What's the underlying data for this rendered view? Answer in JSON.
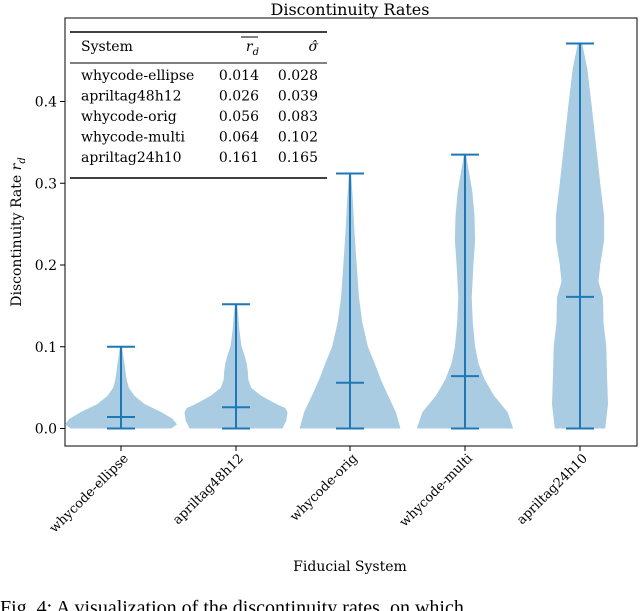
{
  "chart_data": {
    "type": "violin",
    "title": "Discontinuity Rates",
    "xlabel": "Fiducial System",
    "ylabel": "Discontinuity Rate r_d",
    "ylabel_main": "Discontinuity Rate",
    "ylabel_symbol": "r",
    "ylabel_subscript": "d",
    "ylim": [
      -0.02,
      0.49
    ],
    "yticks": [
      "0.0",
      "0.1",
      "0.2",
      "0.3",
      "0.4"
    ],
    "yticks_values": [
      0.0,
      0.1,
      0.2,
      0.3,
      0.4
    ],
    "categories": [
      "whycode-ellipse",
      "apriltag48h12",
      "whycode-orig",
      "whycode-multi",
      "apriltag24h10"
    ],
    "min": [
      0.0,
      0.0,
      0.0,
      0.0,
      0.0
    ],
    "max": [
      0.1,
      0.152,
      0.312,
      0.335,
      0.471
    ],
    "mean": [
      0.014,
      0.026,
      0.056,
      0.064,
      0.161
    ],
    "density_profiles": [
      [
        [
          0,
          0.9
        ],
        [
          0.005,
          1.0
        ],
        [
          0.012,
          0.92
        ],
        [
          0.02,
          0.72
        ],
        [
          0.03,
          0.42
        ],
        [
          0.04,
          0.24
        ],
        [
          0.05,
          0.14
        ],
        [
          0.06,
          0.1
        ],
        [
          0.07,
          0.08
        ],
        [
          0.08,
          0.06
        ],
        [
          0.09,
          0.04
        ],
        [
          0.1,
          0.02
        ]
      ],
      [
        [
          0,
          0.83
        ],
        [
          0.01,
          0.9
        ],
        [
          0.02,
          0.92
        ],
        [
          0.025,
          0.88
        ],
        [
          0.03,
          0.72
        ],
        [
          0.04,
          0.45
        ],
        [
          0.05,
          0.27
        ],
        [
          0.06,
          0.22
        ],
        [
          0.07,
          0.21
        ],
        [
          0.08,
          0.19
        ],
        [
          0.09,
          0.15
        ],
        [
          0.1,
          0.1
        ],
        [
          0.12,
          0.06
        ],
        [
          0.14,
          0.04
        ],
        [
          0.152,
          0.02
        ]
      ],
      [
        [
          0,
          0.9
        ],
        [
          0.02,
          0.82
        ],
        [
          0.04,
          0.68
        ],
        [
          0.06,
          0.55
        ],
        [
          0.08,
          0.44
        ],
        [
          0.1,
          0.32
        ],
        [
          0.13,
          0.22
        ],
        [
          0.16,
          0.16
        ],
        [
          0.2,
          0.12
        ],
        [
          0.24,
          0.08
        ],
        [
          0.28,
          0.05
        ],
        [
          0.312,
          0.02
        ]
      ],
      [
        [
          0,
          0.86
        ],
        [
          0.02,
          0.76
        ],
        [
          0.04,
          0.52
        ],
        [
          0.06,
          0.35
        ],
        [
          0.08,
          0.24
        ],
        [
          0.1,
          0.18
        ],
        [
          0.13,
          0.14
        ],
        [
          0.16,
          0.12
        ],
        [
          0.2,
          0.15
        ],
        [
          0.23,
          0.18
        ],
        [
          0.26,
          0.17
        ],
        [
          0.29,
          0.13
        ],
        [
          0.31,
          0.08
        ],
        [
          0.335,
          0.02
        ]
      ],
      [
        [
          0,
          0.45
        ],
        [
          0.03,
          0.5
        ],
        [
          0.07,
          0.48
        ],
        [
          0.1,
          0.47
        ],
        [
          0.13,
          0.42
        ],
        [
          0.16,
          0.41
        ],
        [
          0.18,
          0.33
        ],
        [
          0.2,
          0.36
        ],
        [
          0.23,
          0.43
        ],
        [
          0.26,
          0.43
        ],
        [
          0.3,
          0.36
        ],
        [
          0.35,
          0.28
        ],
        [
          0.4,
          0.2
        ],
        [
          0.44,
          0.13
        ],
        [
          0.471,
          0.04
        ]
      ]
    ],
    "legend_table": {
      "position": "top-left",
      "headers": [
        "System",
        "r̄_d",
        "σ̂"
      ],
      "rows": [
        [
          "whycode-ellipse",
          "0.014",
          "0.028"
        ],
        [
          "apriltag48h12",
          "0.026",
          "0.039"
        ],
        [
          "whycode-orig",
          "0.056",
          "0.083"
        ],
        [
          "whycode-multi",
          "0.064",
          "0.102"
        ],
        [
          "apriltag24h10",
          "0.161",
          "0.165"
        ]
      ]
    },
    "colors": {
      "body": "#a9cce3",
      "line": "#1f77b4"
    }
  },
  "caption": "Fig. 4: A visualization of the discontinuity rates, on which"
}
